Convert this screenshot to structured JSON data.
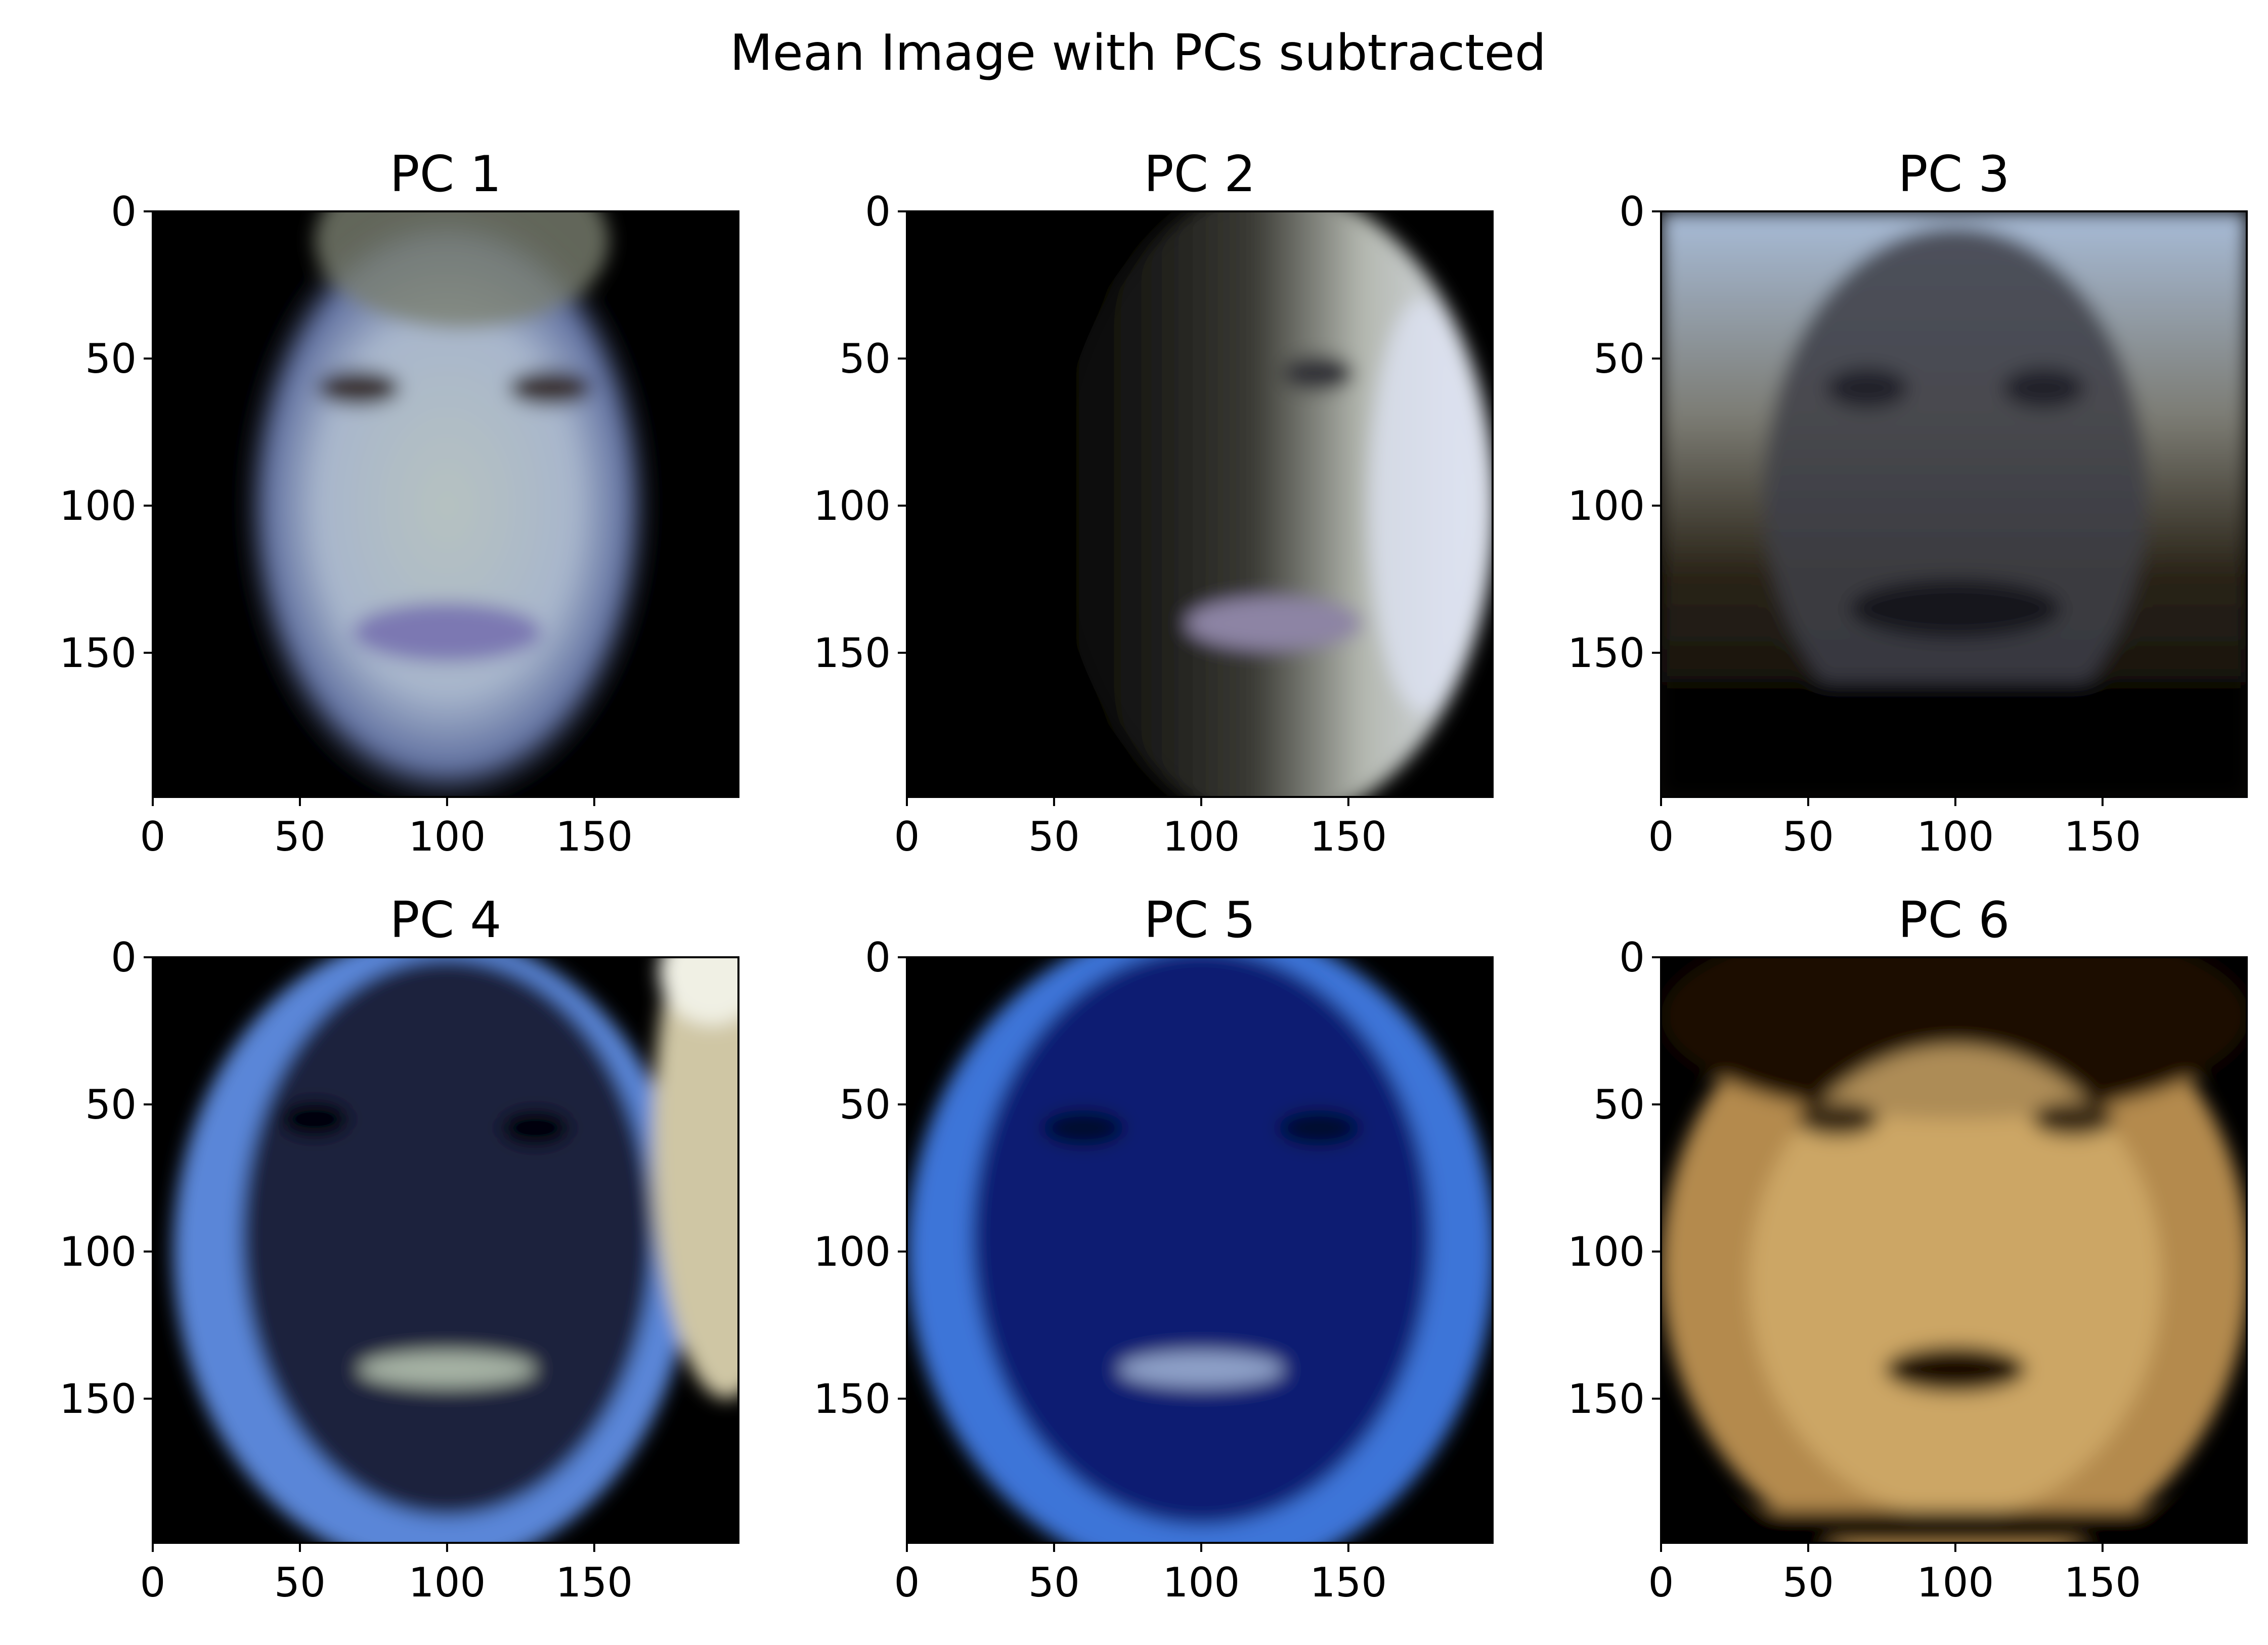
{
  "chart_data": {
    "type": "heatmap",
    "title": "Mean Image with PCs subtracted",
    "layout": "2x3 grid of image panels",
    "panels": [
      {
        "title": "PC 1",
        "xlim": [
          0,
          199
        ],
        "ylim": [
          199,
          0
        ],
        "xticks": [
          0,
          50,
          100,
          150
        ],
        "yticks": [
          0,
          50,
          100,
          150
        ],
        "description_colors": {
          "background": "#000000",
          "skin": "#b8c4d0",
          "lips": "#8a86b8"
        },
        "style": "pale blue-white face on black background"
      },
      {
        "title": "PC 2",
        "xlim": [
          0,
          199
        ],
        "ylim": [
          199,
          0
        ],
        "xticks": [
          0,
          50,
          100,
          150
        ],
        "yticks": [
          0,
          50,
          100,
          150
        ],
        "description_colors": {
          "background": "#000000",
          "skin": "#c8ccd8",
          "lips": "#9a8fb0"
        },
        "style": "face lit from right, left half dark"
      },
      {
        "title": "PC 3",
        "xlim": [
          0,
          199
        ],
        "ylim": [
          199,
          0
        ],
        "xticks": [
          0,
          50,
          100,
          150
        ],
        "yticks": [
          0,
          50,
          100,
          150
        ],
        "description_colors": {
          "background": "#0a0806",
          "skin": "#4c5058",
          "hair": "#b8c8e0"
        },
        "style": "dark face with light hair at top"
      },
      {
        "title": "PC 4",
        "xlim": [
          0,
          199
        ],
        "ylim": [
          199,
          0
        ],
        "xticks": [
          0,
          50,
          100,
          150
        ],
        "yticks": [
          0,
          50,
          100,
          150
        ],
        "description_colors": {
          "background": "#000000",
          "skin": "#1c2440",
          "rim": "#5a86d8",
          "hair": "#d8d0b0"
        },
        "style": "dark navy face with bright blue outline"
      },
      {
        "title": "PC 5",
        "xlim": [
          0,
          199
        ],
        "ylim": [
          199,
          0
        ],
        "xticks": [
          0,
          50,
          100,
          150
        ],
        "yticks": [
          0,
          50,
          100,
          150
        ],
        "description_colors": {
          "background": "#000000",
          "skin": "#0c1a70",
          "rim": "#3e7ae0"
        },
        "style": "deep blue face with lighter blue outline"
      },
      {
        "title": "PC 6",
        "xlim": [
          0,
          199
        ],
        "ylim": [
          199,
          0
        ],
        "xticks": [
          0,
          50,
          100,
          150
        ],
        "yticks": [
          0,
          50,
          100,
          150
        ],
        "description_colors": {
          "background": "#000000",
          "skin": "#c8a060",
          "hair": "#2a1808"
        },
        "style": "warm orange-tan face with dark hair"
      }
    ]
  }
}
